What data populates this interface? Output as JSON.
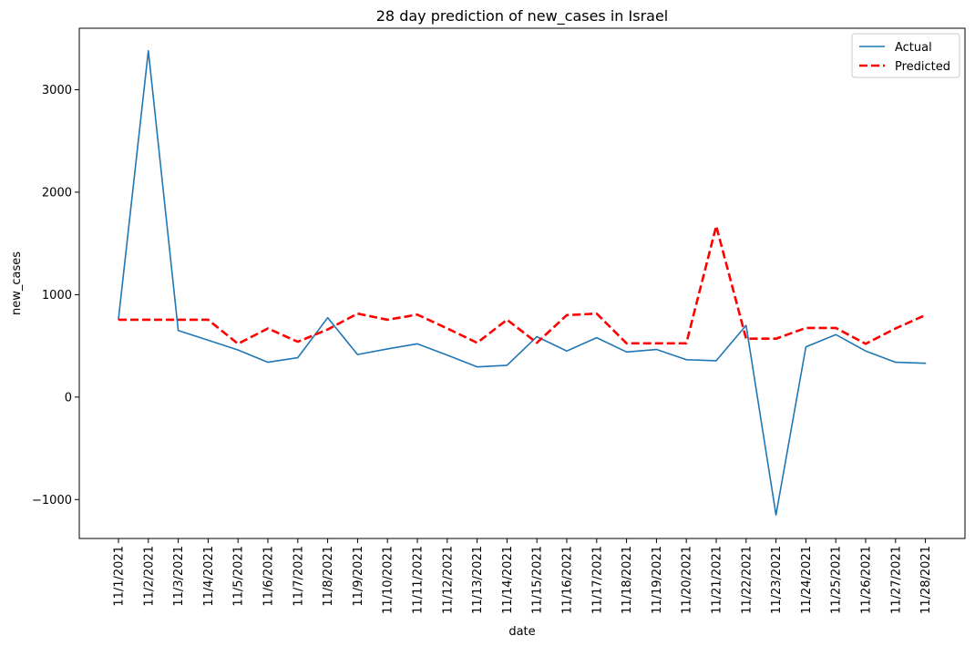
{
  "chart_data": {
    "type": "line",
    "title": "28 day prediction of new_cases in Israel",
    "xlabel": "date",
    "ylabel": "new_cases",
    "ylim": [
      -1380,
      3600
    ],
    "yticks": [
      -1000,
      0,
      1000,
      2000,
      3000
    ],
    "ytick_labels": [
      "−1000",
      "0",
      "1000",
      "2000",
      "3000"
    ],
    "grid": false,
    "legend_position": "top-right",
    "categories": [
      "11/1/2021",
      "11/2/2021",
      "11/3/2021",
      "11/4/2021",
      "11/5/2021",
      "11/6/2021",
      "11/7/2021",
      "11/8/2021",
      "11/9/2021",
      "11/10/2021",
      "11/11/2021",
      "11/12/2021",
      "11/13/2021",
      "11/14/2021",
      "11/15/2021",
      "11/16/2021",
      "11/17/2021",
      "11/18/2021",
      "11/19/2021",
      "11/20/2021",
      "11/21/2021",
      "11/22/2021",
      "11/23/2021",
      "11/24/2021",
      "11/25/2021",
      "11/26/2021",
      "11/27/2021",
      "11/28/2021"
    ],
    "series": [
      {
        "name": "Actual",
        "color": "#1f77b4",
        "dashed": false,
        "values": [
          760,
          3380,
          650,
          555,
          460,
          340,
          385,
          775,
          415,
          470,
          520,
          410,
          295,
          310,
          590,
          450,
          580,
          440,
          465,
          365,
          355,
          700,
          -1150,
          490,
          610,
          450,
          340,
          330
        ]
      },
      {
        "name": "Predicted",
        "color": "#ff0000",
        "dashed": true,
        "values": [
          755,
          755,
          755,
          755,
          520,
          670,
          540,
          660,
          815,
          755,
          805,
          670,
          530,
          755,
          530,
          800,
          815,
          525,
          525,
          525,
          1670,
          570,
          570,
          675,
          675,
          520,
          670,
          800
        ]
      }
    ]
  }
}
